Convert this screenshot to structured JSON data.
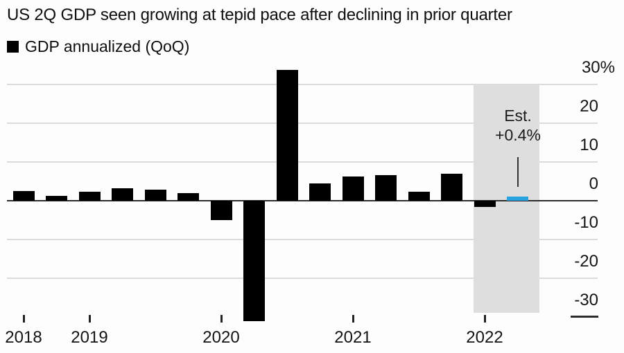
{
  "title": "US 2Q GDP seen growing at tepid pace after declining in prior quarter",
  "legend": {
    "label": "GDP annualized (QoQ)",
    "swatch_color": "#000000"
  },
  "annotation": {
    "line1": "Est.",
    "line2": "+0.4%"
  },
  "y_axis": {
    "labels": [
      "30%",
      "20",
      "10",
      "0",
      "-10",
      "-20",
      "-30"
    ],
    "values": [
      30,
      20,
      10,
      0,
      -10,
      -20,
      -30
    ]
  },
  "x_axis": {
    "labels": [
      "2018",
      "2019",
      "2020",
      "2021",
      "2022"
    ]
  },
  "colors": {
    "bar": "#000000",
    "estimate_bar": "#2aa3e0",
    "band": "#dedede",
    "gridline": "#dbdbdf",
    "axis_line": "#2b2b2b"
  },
  "chart_data": {
    "type": "bar",
    "title": "US 2Q GDP seen growing at tepid pace after declining in prior quarter",
    "series_name": "GDP annualized (QoQ)",
    "unit": "percent, annualized quarter-over-quarter",
    "x": [
      "2018 Q3",
      "2018 Q4",
      "2019 Q1",
      "2019 Q2",
      "2019 Q3",
      "2019 Q4",
      "2020 Q1",
      "2020 Q2",
      "2020 Q3",
      "2020 Q4",
      "2021 Q1",
      "2021 Q2",
      "2021 Q3",
      "2021 Q4",
      "2022 Q1",
      "2022 Q2 est"
    ],
    "values": [
      2.5,
      1.3,
      2.4,
      3.2,
      2.8,
      1.9,
      -5.1,
      -31.2,
      33.8,
      4.5,
      6.3,
      6.7,
      2.3,
      6.9,
      -1.6,
      0.4
    ],
    "estimate_index": 15,
    "estimate_label": "Est. +0.4%",
    "year_tick_labels": [
      "2018",
      "2019",
      "2020",
      "2021",
      "2022"
    ],
    "yticks": [
      30,
      20,
      10,
      0,
      -10,
      -20,
      -30
    ],
    "ylim": [
      -32,
      35
    ],
    "grid": "horizontal",
    "legend_position": "top-left",
    "y_axis_side": "right",
    "shaded_region": "estimate band over 2022 Q1 - 2022 Q2"
  }
}
